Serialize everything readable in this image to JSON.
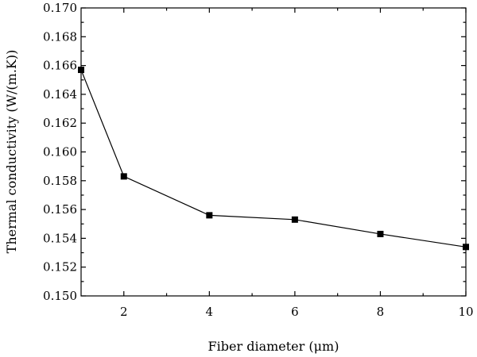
{
  "chart_data": {
    "type": "line",
    "xlabel": "Fiber diameter (μm)",
    "ylabel": "Thermal conductivity (W/(m.K))",
    "xlim": [
      1,
      10
    ],
    "ylim": [
      0.15,
      0.17
    ],
    "x_ticks": [
      2,
      4,
      6,
      8,
      10
    ],
    "x_tick_labels": [
      "2",
      "4",
      "6",
      "8",
      "10"
    ],
    "y_ticks": [
      0.15,
      0.152,
      0.154,
      0.156,
      0.158,
      0.16,
      0.162,
      0.164,
      0.166,
      0.168,
      0.17
    ],
    "y_tick_labels": [
      "0.150",
      "0.152",
      "0.154",
      "0.156",
      "0.158",
      "0.160",
      "0.162",
      "0.164",
      "0.166",
      "0.168",
      "0.170"
    ],
    "grid": false,
    "legend": "none",
    "series": [
      {
        "x": [
          1,
          2,
          4,
          6,
          8,
          10
        ],
        "y": [
          0.1657,
          0.1583,
          0.1556,
          0.1553,
          0.1543,
          0.1534
        ],
        "marker": "square",
        "color": "#000000"
      }
    ]
  }
}
